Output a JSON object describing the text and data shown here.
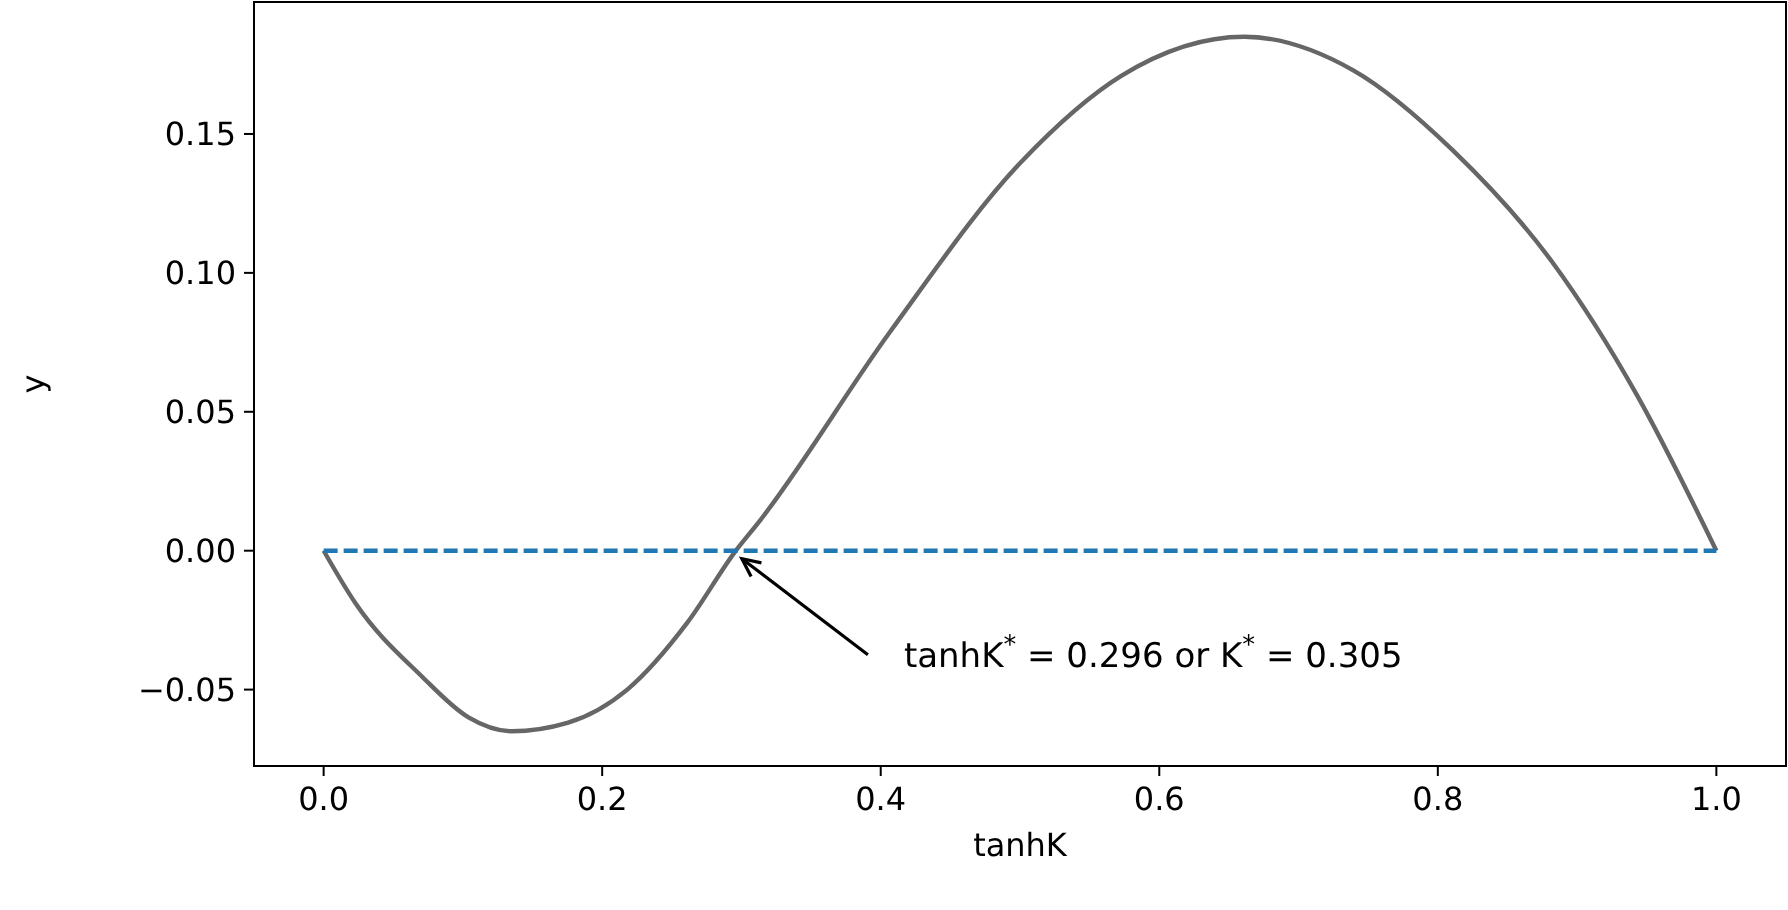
{
  "chart_data": {
    "type": "line",
    "xlabel": "tanhK",
    "ylabel": "y",
    "xlim": [
      -0.05,
      1.05
    ],
    "ylim": [
      -0.0775,
      0.1975
    ],
    "xticks": [
      {
        "value": 0,
        "label": "0.0"
      },
      {
        "value": 0.2,
        "label": "0.2"
      },
      {
        "value": 0.4,
        "label": "0.4"
      },
      {
        "value": 0.6,
        "label": "0.6"
      },
      {
        "value": 0.8,
        "label": "0.8"
      },
      {
        "value": 1,
        "label": "1.0"
      }
    ],
    "yticks": [
      {
        "value": -0.05,
        "label": "−0.05"
      },
      {
        "value": 0,
        "label": "0.00"
      },
      {
        "value": 0.05,
        "label": "0.05"
      },
      {
        "value": 0.1,
        "label": "0.10"
      },
      {
        "value": 0.15,
        "label": "0.15"
      }
    ],
    "grid": false,
    "marker": "none",
    "series": [
      {
        "color": "#666666",
        "line_style": "solid",
        "x": [
          0,
          0.023,
          0.07,
          0.104,
          0.135,
          0.175,
          0.218,
          0.261,
          0.296,
          0.312,
          0.407,
          0.501,
          0.573,
          0.661,
          0.739,
          0.811,
          0.882,
          0.943,
          1
        ],
        "values": [
          0,
          -0.019,
          -0.045,
          -0.06,
          -0.065,
          -0.062,
          -0.05,
          -0.026,
          0,
          0.01,
          0.079,
          0.14,
          0.171,
          0.185,
          0.173,
          0.144,
          0.104,
          0.056,
          0
        ]
      },
      {
        "color": "#1f77b4",
        "line_style": "dashed",
        "x": [
          0,
          1
        ],
        "values": [
          0,
          0
        ]
      }
    ],
    "annotations": [
      {
        "text": "tanhK$^{*}$ = 0.296 or K$^{*}$ = 0.305",
        "x": 0.296,
        "y": 0
      }
    ]
  }
}
